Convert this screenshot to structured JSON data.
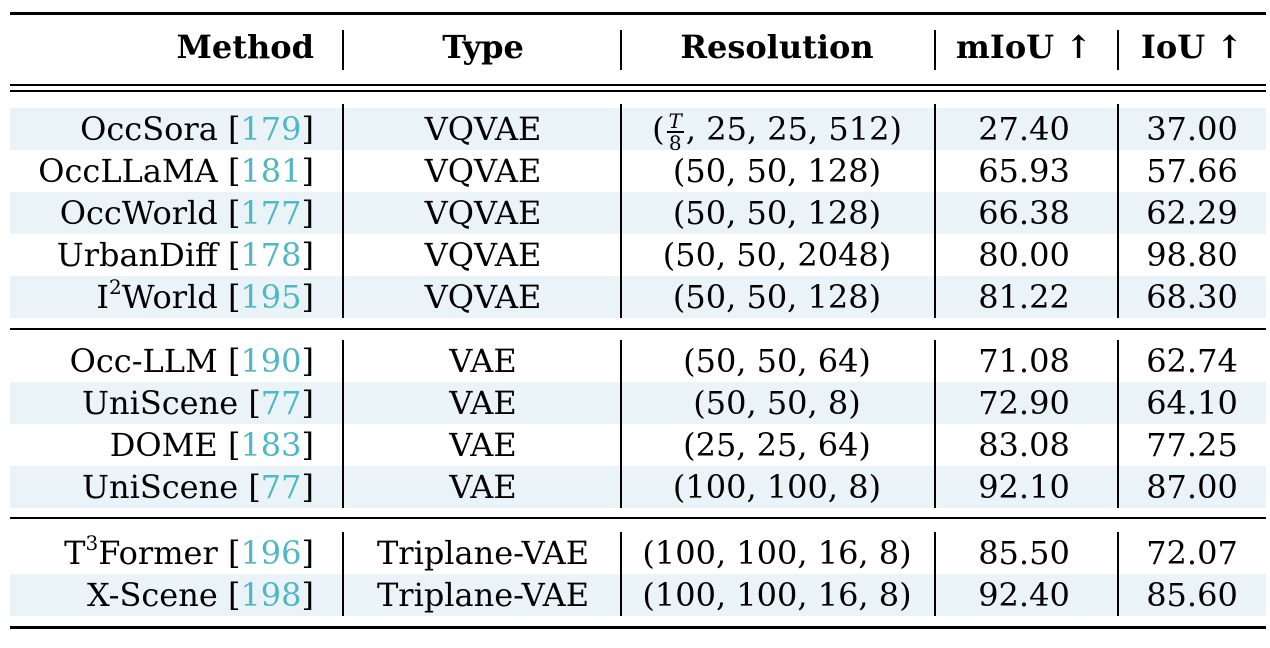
{
  "header": {
    "method": "Method",
    "type": "Type",
    "resolution": "Resolution",
    "miou": "mIoU ↑",
    "iou": "IoU ↑"
  },
  "groups": [
    {
      "rows": [
        {
          "name": "OccSora",
          "name_sup": "",
          "name_rest": "",
          "ref": "179",
          "type": "VQVAE",
          "res_frac_num": "T",
          "res_frac_den": "8",
          "resolution": ", 25, 25, 512)",
          "miou": "27.40",
          "iou": "37.00",
          "shaded": true
        },
        {
          "name": "OccLLaMA",
          "name_sup": "",
          "name_rest": "",
          "ref": "181",
          "type": "VQVAE",
          "resolution": "(50, 50, 128)",
          "miou": "65.93",
          "iou": "57.66",
          "shaded": false
        },
        {
          "name": "OccWorld",
          "name_sup": "",
          "name_rest": "",
          "ref": "177",
          "type": "VQVAE",
          "resolution": "(50, 50, 128)",
          "miou": "66.38",
          "iou": "62.29",
          "shaded": true
        },
        {
          "name": "UrbanDiff",
          "name_sup": "",
          "name_rest": "",
          "ref": "178",
          "type": "VQVAE",
          "resolution": "(50, 50, 2048)",
          "miou": "80.00",
          "iou": "98.80",
          "shaded": false
        },
        {
          "name": "I",
          "name_sup": "2",
          "name_rest": "World",
          "ref": "195",
          "type": "VQVAE",
          "resolution": "(50, 50, 128)",
          "miou": "81.22",
          "iou": "68.30",
          "shaded": true
        }
      ]
    },
    {
      "rows": [
        {
          "name": "Occ-LLM",
          "name_sup": "",
          "name_rest": "",
          "ref": "190",
          "type": "VAE",
          "resolution": "(50, 50, 64)",
          "miou": "71.08",
          "iou": "62.74",
          "shaded": false
        },
        {
          "name": "UniScene",
          "name_sup": "",
          "name_rest": "",
          "ref": "77",
          "type": "VAE",
          "resolution": "(50, 50, 8)",
          "miou": "72.90",
          "iou": "64.10",
          "shaded": true
        },
        {
          "name": "DOME",
          "name_sup": "",
          "name_rest": "",
          "ref": "183",
          "type": "VAE",
          "resolution": "(25, 25, 64)",
          "miou": "83.08",
          "iou": "77.25",
          "shaded": false
        },
        {
          "name": "UniScene",
          "name_sup": "",
          "name_rest": "",
          "ref": "77",
          "type": "VAE",
          "resolution": "(100, 100, 8)",
          "miou": "92.10",
          "iou": "87.00",
          "shaded": true
        }
      ]
    },
    {
      "rows": [
        {
          "name": "T",
          "name_sup": "3",
          "name_rest": "Former",
          "ref": "196",
          "type": "Triplane-VAE",
          "resolution": "(100, 100, 16, 8)",
          "miou": "85.50",
          "iou": "72.07",
          "shaded": false
        },
        {
          "name": "X-Scene",
          "name_sup": "",
          "name_rest": "",
          "ref": "198",
          "type": "Triplane-VAE",
          "resolution": "(100, 100, 16, 8)",
          "miou": "92.40",
          "iou": "85.60",
          "shaded": true
        }
      ]
    }
  ],
  "colors": {
    "ref_link": "#4fb8c2",
    "row_shade": "#eaf4f8"
  }
}
